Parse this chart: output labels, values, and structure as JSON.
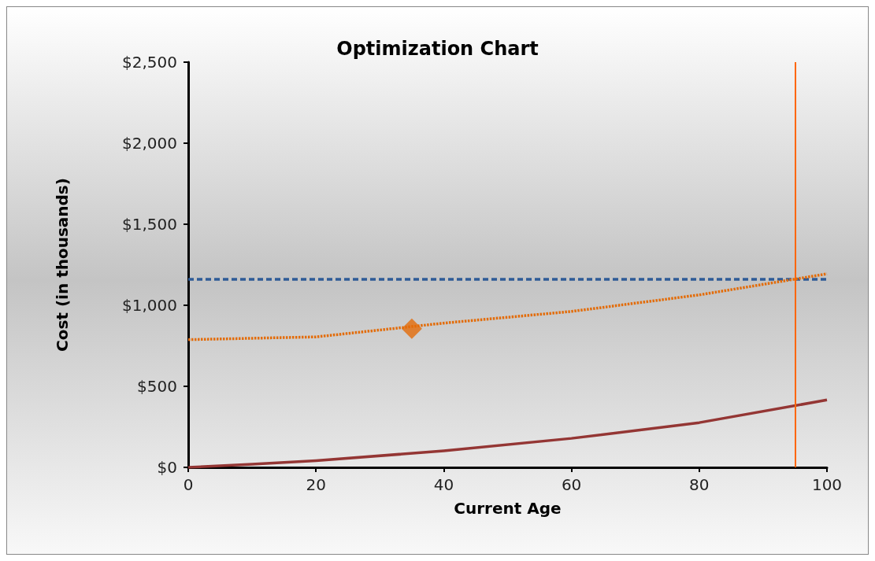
{
  "chart_data": {
    "type": "line",
    "title": "Optimization Chart",
    "xlabel": "Current Age",
    "ylabel": "Cost (in thousands)",
    "xlim": [
      0,
      100
    ],
    "xticks": [
      0,
      20,
      40,
      60,
      80,
      100
    ],
    "ylim": [
      0,
      2500
    ],
    "yticks": [
      {
        "value": 0,
        "label": "$0"
      },
      {
        "value": 500,
        "label": "$500"
      },
      {
        "value": 1000,
        "label": "$1,000"
      },
      {
        "value": 1500,
        "label": "$1,500"
      },
      {
        "value": 2000,
        "label": "$2,000"
      },
      {
        "value": 2500,
        "label": "$2,500"
      }
    ],
    "grid": false,
    "marker": "none",
    "series": [
      {
        "color": "#2e5b97",
        "line_style": "dashed",
        "x": [
          0,
          100
        ],
        "values": [
          1160,
          1160
        ]
      },
      {
        "color": "#e36c09",
        "line_style": "dotted",
        "x": [
          0,
          20,
          40,
          60,
          80,
          100
        ],
        "values": [
          788,
          805,
          890,
          962,
          1064,
          1194
        ]
      },
      {
        "color": "#943634",
        "line_style": "solid",
        "x": [
          0,
          10,
          20,
          40,
          60,
          80,
          100
        ],
        "values": [
          0,
          19,
          41,
          102,
          179,
          276,
          416
        ]
      },
      {
        "type": "scatter",
        "color": "#e36c09",
        "marker": "diamond",
        "x": [
          35
        ],
        "values": [
          856
        ]
      }
    ],
    "ref_lines": [
      {
        "axis": "x",
        "value": 95,
        "color": "#ff6600",
        "line_style": "solid"
      }
    ]
  }
}
